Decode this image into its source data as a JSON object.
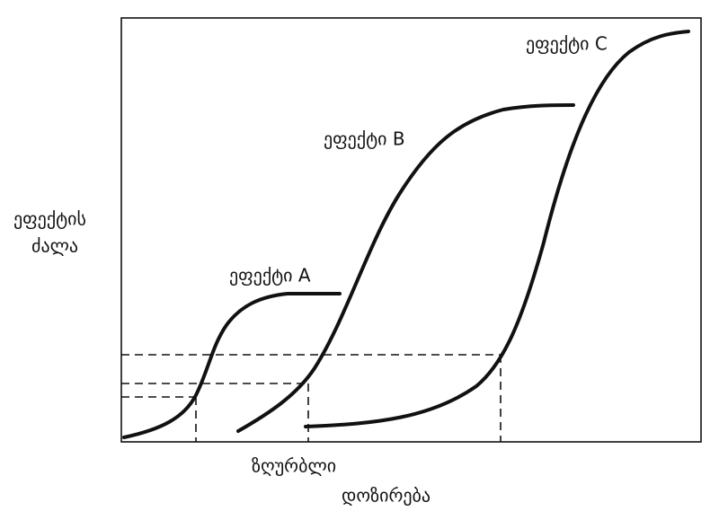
{
  "curves": [
    {
      "label": "ეფექტი A"
    },
    {
      "label": "ეფექტი B"
    },
    {
      "label": "ეფექტი C"
    }
  ],
  "y_axis_label": [
    "ეფექტის",
    "ძალა"
  ],
  "threshold_label": "ზღურბლი",
  "x_axis_label": "დოზირება"
}
